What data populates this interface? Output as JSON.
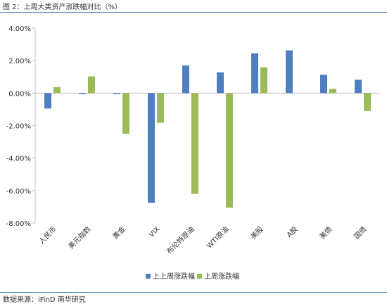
{
  "caption": "图 2：上周大类资产涨跌幅对比（%）",
  "source": "数据来源：iFinD 南华研究",
  "chart_data": {
    "type": "bar",
    "title": "",
    "xlabel": "",
    "ylabel": "",
    "ylim": [
      -8,
      4
    ],
    "y_ticks": [
      "4.00%",
      "2.00%",
      "0.00%",
      "-2.00%",
      "-4.00%",
      "-6.00%",
      "-8.00%"
    ],
    "grid": false,
    "legend_position": "bottom",
    "categories": [
      "人民币",
      "美元指数",
      "黄金",
      "VIX",
      "布伦特原油",
      "WTI原油",
      "美股",
      "A股",
      "美债",
      "国债"
    ],
    "series": [
      {
        "name": "上上周涨跌幅",
        "color": "#4f7fbf",
        "values": [
          -0.95,
          -0.06,
          -0.06,
          -6.75,
          1.7,
          1.28,
          2.45,
          2.63,
          1.13,
          0.82
        ]
      },
      {
        "name": "上周涨跌幅",
        "color": "#9bbb59",
        "values": [
          0.37,
          1.03,
          -2.5,
          -1.83,
          -6.2,
          -7.05,
          1.6,
          null,
          0.27,
          -1.1
        ]
      }
    ]
  }
}
